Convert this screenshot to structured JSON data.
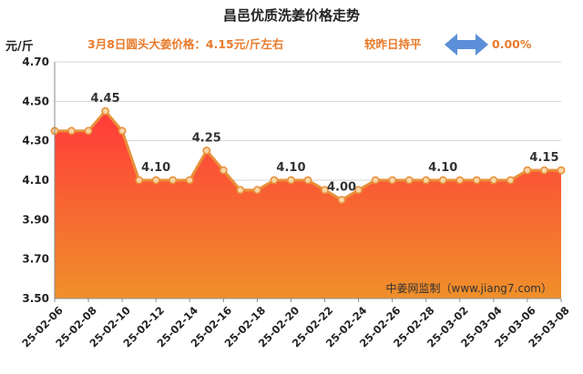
{
  "chart_data": {
    "type": "area",
    "title": "昌邑优质洗姜价格走势",
    "ylabel": "元/斤",
    "ylim": [
      3.5,
      4.7
    ],
    "yticks": [
      "4.70",
      "4.50",
      "4.30",
      "4.10",
      "3.90",
      "3.70",
      "3.50"
    ],
    "x": [
      "25-02-06",
      "25-02-07",
      "25-02-08",
      "25-02-09",
      "25-02-10",
      "25-02-11",
      "25-02-12",
      "25-02-13",
      "25-02-14",
      "25-02-15",
      "25-02-16",
      "25-02-17",
      "25-02-18",
      "25-02-19",
      "25-02-20",
      "25-02-21",
      "25-02-22",
      "25-02-23",
      "25-02-24",
      "25-02-25",
      "25-02-26",
      "25-02-27",
      "25-02-28",
      "25-03-01",
      "25-03-02",
      "25-03-03",
      "25-03-04",
      "25-03-05",
      "25-03-06",
      "25-03-07",
      "25-03-08"
    ],
    "xtick_labels": [
      "25-02-06",
      "25-02-08",
      "25-02-10",
      "25-02-12",
      "25-02-14",
      "25-02-16",
      "25-02-18",
      "25-02-20",
      "25-02-22",
      "25-02-24",
      "25-02-26",
      "25-02-28",
      "25-03-02",
      "25-03-04",
      "25-03-06",
      "25-03-08"
    ],
    "values": [
      4.35,
      4.35,
      4.35,
      4.45,
      4.35,
      4.1,
      4.1,
      4.1,
      4.1,
      4.25,
      4.15,
      4.05,
      4.05,
      4.1,
      4.1,
      4.1,
      4.05,
      4.0,
      4.05,
      4.1,
      4.1,
      4.1,
      4.1,
      4.1,
      4.1,
      4.1,
      4.1,
      4.1,
      4.15,
      4.15,
      4.15
    ],
    "data_labels": [
      {
        "index": 3,
        "text": "4.45"
      },
      {
        "index": 6,
        "text": "4.10"
      },
      {
        "index": 9,
        "text": "4.25"
      },
      {
        "index": 14,
        "text": "4.10"
      },
      {
        "index": 17,
        "text": "4.00"
      },
      {
        "index": 23,
        "text": "4.10"
      },
      {
        "index": 29,
        "text": "4.15"
      }
    ],
    "grid": true,
    "colors": {
      "line": "#e8903a",
      "marker_fill": "#f7d6a8",
      "area_top": "#ff3a3a",
      "area_bottom": "#f0902a",
      "arrow": "#5b8fd8"
    }
  },
  "annotations": {
    "price_note": "3月8日圆头大姜价格：4.15元/斤左右",
    "compare_note": "较昨日持平",
    "change_pct": "0.00%",
    "source": "中姜网监制（www.jiang7.com）"
  }
}
